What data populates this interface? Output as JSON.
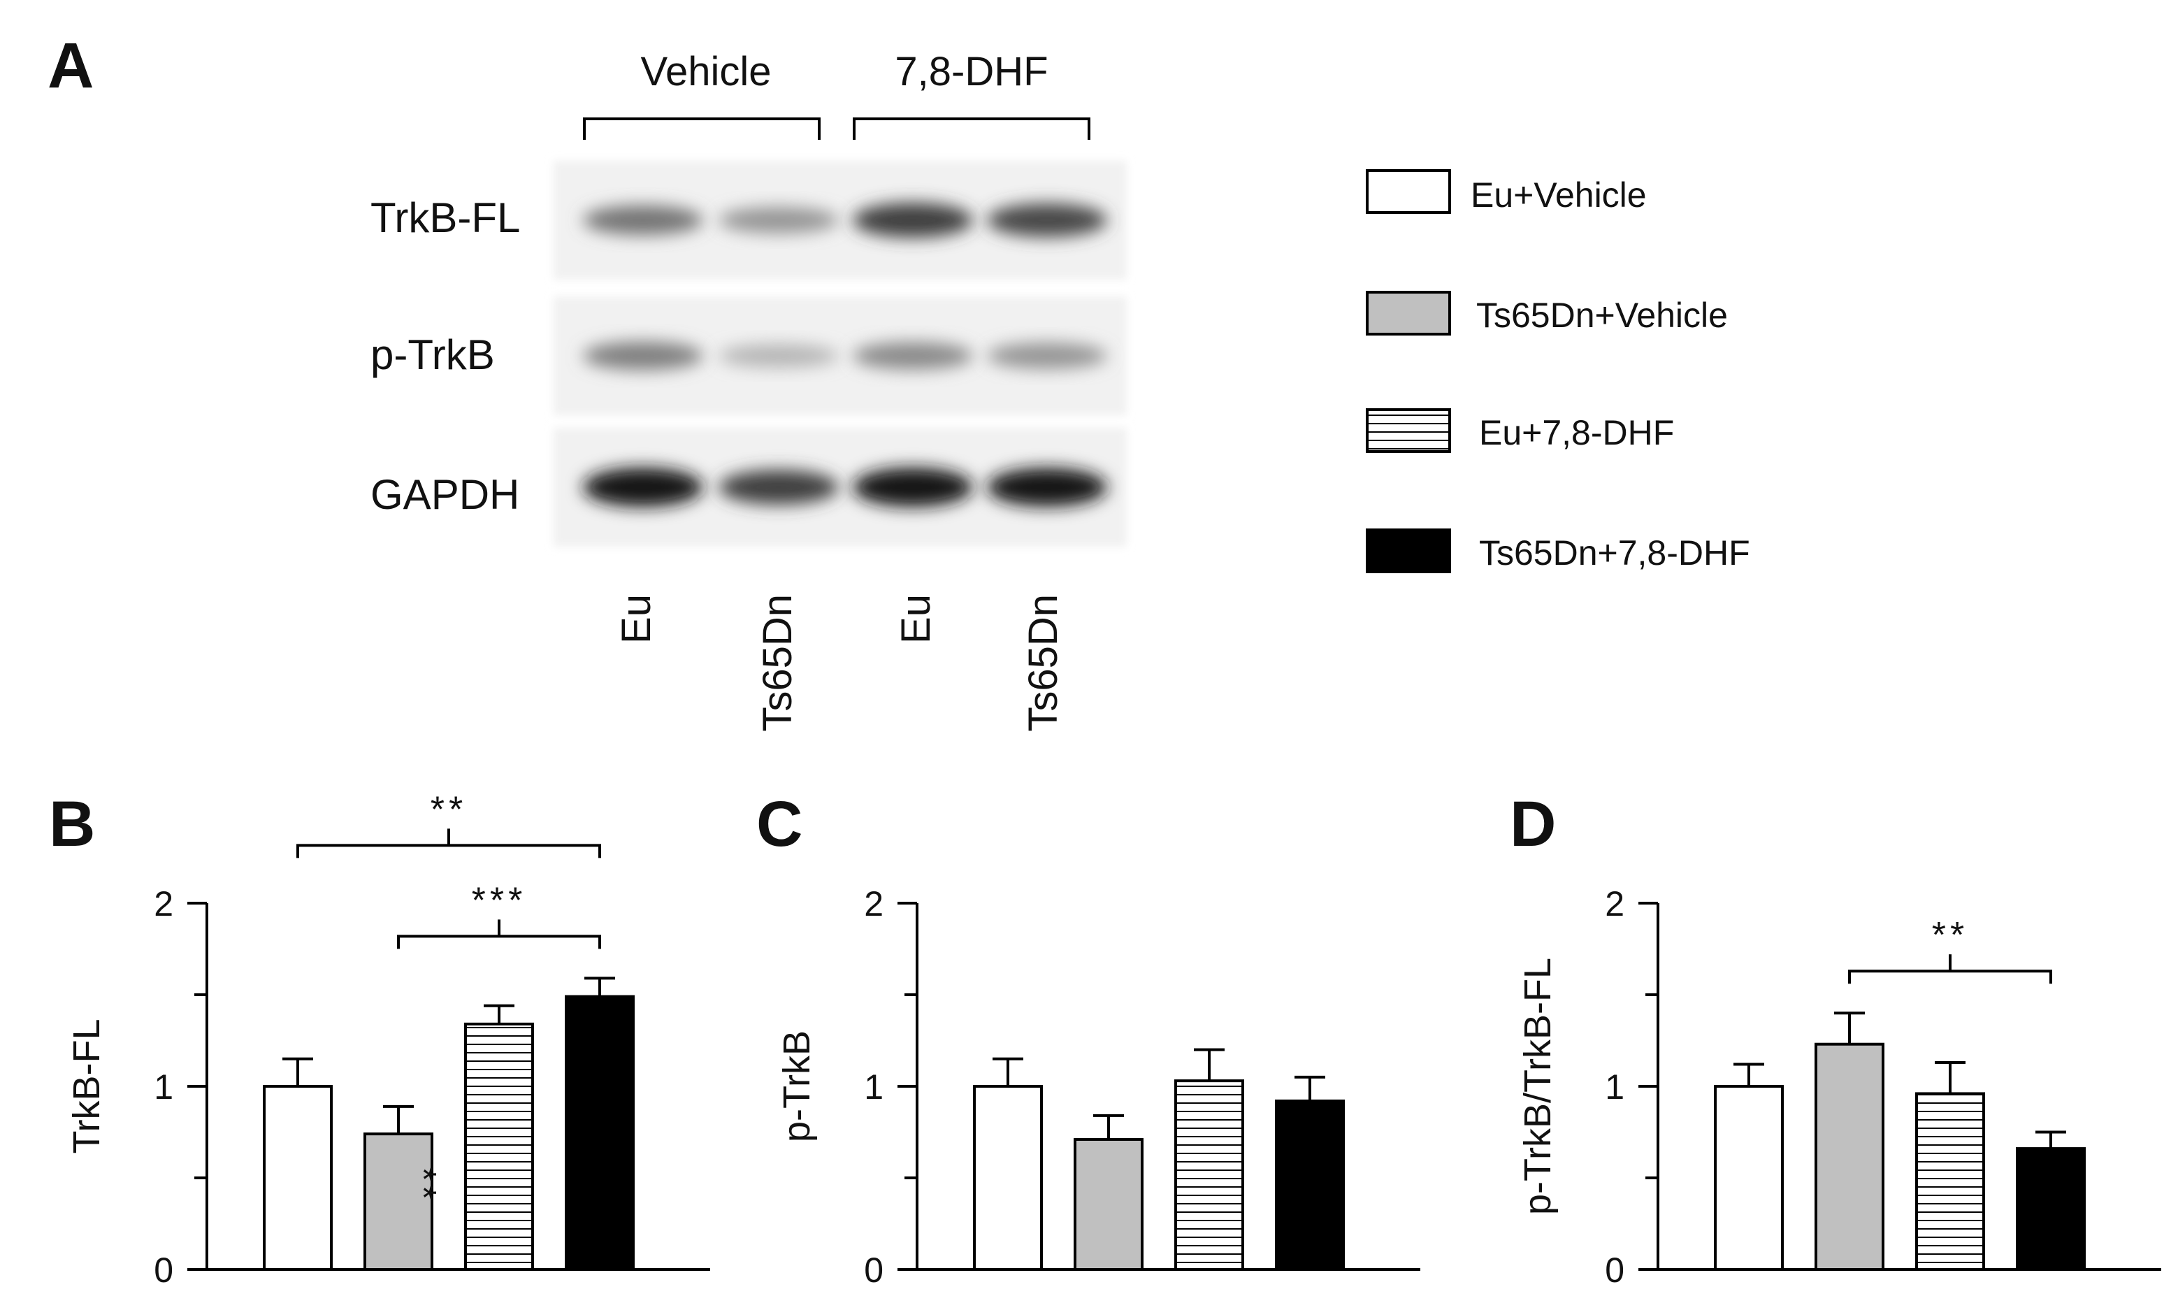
{
  "figure": {
    "panel_a": {
      "letter": "A",
      "groups": [
        "Vehicle",
        "7,8-DHF"
      ],
      "bands": [
        "TrkB-FL",
        "p-TrkB",
        "GAPDH"
      ],
      "lanes": [
        "Eu",
        "Ts65Dn",
        "Eu",
        "Ts65Dn"
      ],
      "band_intensity": {
        "TrkB-FL": [
          0.55,
          0.4,
          0.8,
          0.75
        ],
        "p-TrkB": [
          0.5,
          0.25,
          0.45,
          0.4
        ],
        "GAPDH": [
          1.0,
          0.8,
          1.0,
          0.98
        ]
      }
    },
    "legend": [
      {
        "label": "Eu+Vehicle",
        "fill": "white"
      },
      {
        "label": "Ts65Dn+Vehicle",
        "fill": "#c0c0c0"
      },
      {
        "label": "Eu+7,8-DHF",
        "fill": "striped"
      },
      {
        "label": "Ts65Dn+7,8-DHF",
        "fill": "#000000"
      }
    ],
    "colors": {
      "eu_vehicle": "#ffffff",
      "ts_vehicle": "#c0c0c0",
      "ts_dhf": "#000000",
      "stroke": "#000000"
    }
  },
  "chart_data": [
    {
      "panel": "B",
      "type": "bar",
      "ylabel": "TrkB-FL",
      "ylim": [
        0,
        2
      ],
      "yticks": [
        "0",
        "1",
        "2"
      ],
      "values": [
        1.0,
        0.74,
        1.34,
        1.49
      ],
      "errors": [
        0.15,
        0.15,
        0.1,
        0.1
      ],
      "in_bar_marks": [
        {
          "bar": 1,
          "text": "**"
        }
      ],
      "brackets": [
        {
          "from": 0,
          "to": 3,
          "label": "**"
        },
        {
          "from": 1,
          "to": 3,
          "label": "***"
        }
      ]
    },
    {
      "panel": "C",
      "type": "bar",
      "ylabel": "p-TrkB",
      "ylim": [
        0,
        2
      ],
      "yticks": [
        "0",
        "1",
        "2"
      ],
      "values": [
        1.0,
        0.71,
        1.03,
        0.92
      ],
      "errors": [
        0.15,
        0.13,
        0.17,
        0.13
      ],
      "in_bar_marks": [],
      "brackets": []
    },
    {
      "panel": "D",
      "type": "bar",
      "ylabel": "p-TrkB/TrkB-FL",
      "ylim": [
        0,
        2
      ],
      "yticks": [
        "0",
        "1",
        "2"
      ],
      "values": [
        1.0,
        1.23,
        0.96,
        0.66
      ],
      "errors": [
        0.12,
        0.17,
        0.17,
        0.09
      ],
      "in_bar_marks": [],
      "brackets": [
        {
          "from": 1,
          "to": 3,
          "label": "**"
        }
      ]
    }
  ]
}
